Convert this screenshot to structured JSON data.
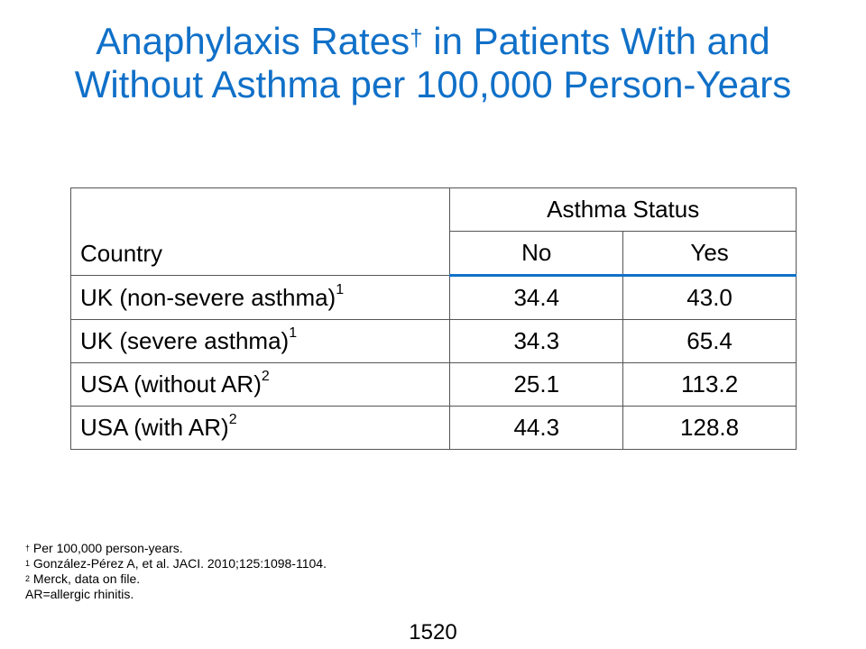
{
  "title": {
    "line1_before": "Anaphylaxis Rates",
    "dagger": "†",
    "line1_after": " in Patients With and",
    "line2": "Without Asthma per 100,000 Person-Years"
  },
  "table": {
    "country_header": "Country",
    "group_header": "Asthma Status",
    "col_no": "No",
    "col_yes": "Yes",
    "rows": [
      {
        "country": "UK (non-severe asthma)",
        "ref": "1",
        "no": "34.4",
        "yes": "43.0"
      },
      {
        "country": "UK (severe asthma)",
        "ref": "1",
        "no": "34.3",
        "yes": "65.4"
      },
      {
        "country": "USA (without AR)",
        "ref": "2",
        "no": "25.1",
        "yes": "113.2"
      },
      {
        "country": "USA (with AR)",
        "ref": "2",
        "no": "44.3",
        "yes": "128.8"
      }
    ]
  },
  "footnotes": [
    {
      "mark": "†",
      "text": " Per 100,000 person-years."
    },
    {
      "mark": "1",
      "text": " González-Pérez A, et al. JACI. 2010;125:1098-1104."
    },
    {
      "mark": "2",
      "text": " Merck, data on file."
    },
    {
      "mark": "",
      "text": "AR=allergic rhinitis."
    }
  ],
  "page_number": "1520"
}
